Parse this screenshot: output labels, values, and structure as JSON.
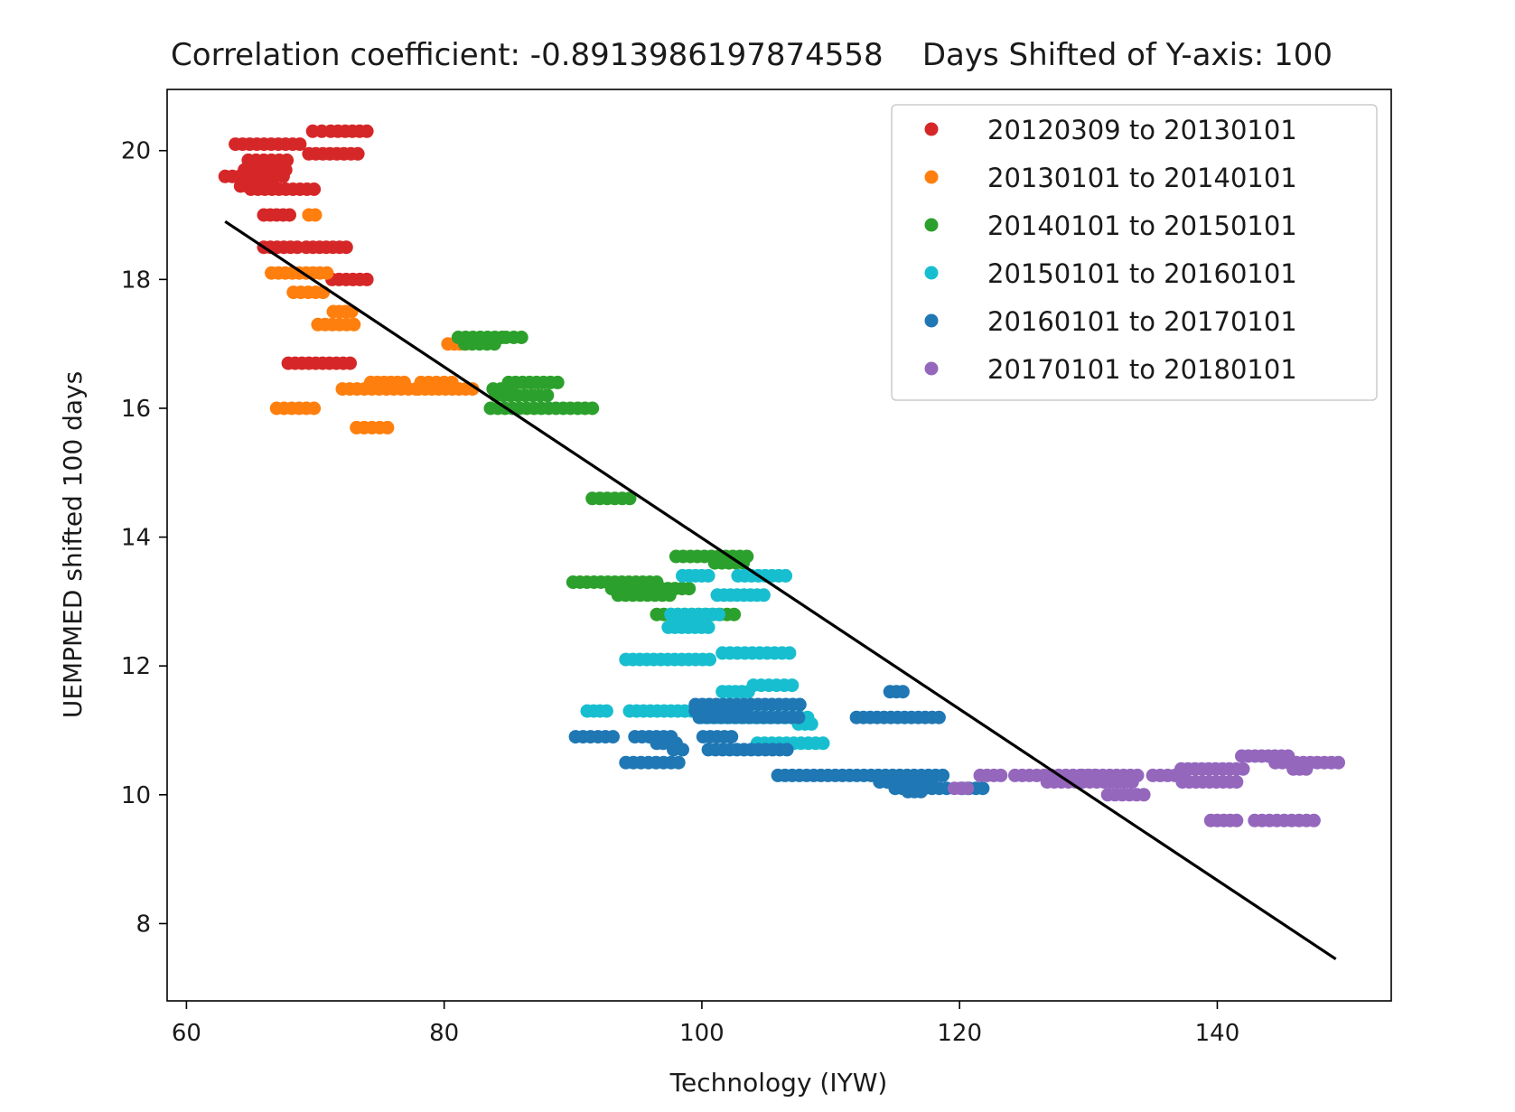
{
  "chart_data": {
    "type": "scatter",
    "title": "Correlation coefficient: -0.8913986197874558    Days Shifted of Y-axis: 100",
    "xlabel": "Technology (IYW)",
    "ylabel": "UEMPMED shifted 100 days",
    "xlim": [
      58.5,
      153.5
    ],
    "ylim": [
      6.8,
      20.95
    ],
    "xticks": [
      60,
      80,
      100,
      120,
      140
    ],
    "yticks": [
      8,
      10,
      12,
      14,
      16,
      18,
      20
    ],
    "grid": false,
    "legend_position": "top-right",
    "series": [
      {
        "name": "20120309 to 20130101",
        "color": "#d62728",
        "segments": [
          {
            "x1": 63.8,
            "x2": 68.8,
            "y": 20.1
          },
          {
            "x1": 69.8,
            "x2": 70.5,
            "y": 20.3
          },
          {
            "x1": 71.2,
            "x2": 74.0,
            "y": 20.3
          },
          {
            "x1": 64.8,
            "x2": 67.8,
            "y": 19.85
          },
          {
            "x1": 69.5,
            "x2": 73.3,
            "y": 19.95
          },
          {
            "x1": 64.5,
            "x2": 67.7,
            "y": 19.7
          },
          {
            "x1": 63.0,
            "x2": 67.5,
            "y": 19.6
          },
          {
            "x1": 64.2,
            "x2": 66.7,
            "y": 19.45
          },
          {
            "x1": 65.0,
            "x2": 69.9,
            "y": 19.4
          },
          {
            "x1": 66.0,
            "x2": 68.0,
            "y": 19.0
          },
          {
            "x1": 66.0,
            "x2": 68.6,
            "y": 18.5
          },
          {
            "x1": 69.3,
            "x2": 72.4,
            "y": 18.5
          },
          {
            "x1": 71.3,
            "x2": 74.0,
            "y": 18.0
          },
          {
            "x1": 67.9,
            "x2": 72.7,
            "y": 16.7
          }
        ]
      },
      {
        "name": "20130101 to 20140101",
        "color": "#ff7f0e",
        "segments": [
          {
            "x1": 69.5,
            "x2": 70.0,
            "y": 19.0
          },
          {
            "x1": 66.6,
            "x2": 70.9,
            "y": 18.1
          },
          {
            "x1": 68.3,
            "x2": 70.6,
            "y": 17.8
          },
          {
            "x1": 71.4,
            "x2": 72.8,
            "y": 17.5
          },
          {
            "x1": 70.2,
            "x2": 73.0,
            "y": 17.3
          },
          {
            "x1": 72.1,
            "x2": 77.8,
            "y": 16.3
          },
          {
            "x1": 74.3,
            "x2": 76.9,
            "y": 16.4
          },
          {
            "x1": 78.2,
            "x2": 80.6,
            "y": 16.4
          },
          {
            "x1": 78.0,
            "x2": 82.2,
            "y": 16.3
          },
          {
            "x1": 67.0,
            "x2": 69.9,
            "y": 16.0
          },
          {
            "x1": 73.2,
            "x2": 75.6,
            "y": 15.7
          },
          {
            "x1": 80.3,
            "x2": 81.7,
            "y": 17.0
          }
        ]
      },
      {
        "name": "20140101 to 20150101",
        "color": "#2ca02c",
        "segments": [
          {
            "x1": 81.1,
            "x2": 84.5,
            "y": 17.1
          },
          {
            "x1": 84.8,
            "x2": 86.0,
            "y": 17.1
          },
          {
            "x1": 81.6,
            "x2": 83.9,
            "y": 17.0
          },
          {
            "x1": 85.0,
            "x2": 88.8,
            "y": 16.4
          },
          {
            "x1": 84.0,
            "x2": 88.0,
            "y": 16.2
          },
          {
            "x1": 83.8,
            "x2": 85.0,
            "y": 16.3
          },
          {
            "x1": 83.6,
            "x2": 91.5,
            "y": 16.0
          },
          {
            "x1": 91.5,
            "x2": 94.4,
            "y": 14.6
          },
          {
            "x1": 98.0,
            "x2": 103.5,
            "y": 13.7
          },
          {
            "x1": 101.0,
            "x2": 103.2,
            "y": 13.6
          },
          {
            "x1": 90.0,
            "x2": 96.5,
            "y": 13.3
          },
          {
            "x1": 93.0,
            "x2": 99.0,
            "y": 13.2
          },
          {
            "x1": 93.5,
            "x2": 97.5,
            "y": 13.1
          },
          {
            "x1": 96.5,
            "x2": 102.5,
            "y": 12.8
          }
        ]
      },
      {
        "name": "20150101 to 20160101",
        "color": "#17becf",
        "segments": [
          {
            "x1": 98.5,
            "x2": 100.5,
            "y": 13.4
          },
          {
            "x1": 102.8,
            "x2": 106.5,
            "y": 13.4
          },
          {
            "x1": 101.2,
            "x2": 104.8,
            "y": 13.1
          },
          {
            "x1": 97.6,
            "x2": 101.3,
            "y": 12.8
          },
          {
            "x1": 97.4,
            "x2": 100.5,
            "y": 12.6
          },
          {
            "x1": 94.1,
            "x2": 100.6,
            "y": 12.1
          },
          {
            "x1": 101.6,
            "x2": 106.8,
            "y": 12.2
          },
          {
            "x1": 104.0,
            "x2": 107.0,
            "y": 11.7
          },
          {
            "x1": 101.6,
            "x2": 103.6,
            "y": 11.6
          },
          {
            "x1": 91.1,
            "x2": 92.6,
            "y": 11.3
          },
          {
            "x1": 94.4,
            "x2": 100.8,
            "y": 11.3
          },
          {
            "x1": 100.0,
            "x2": 108.2,
            "y": 11.2
          },
          {
            "x1": 104.3,
            "x2": 109.4,
            "y": 10.8
          },
          {
            "x1": 107.5,
            "x2": 108.5,
            "y": 11.1
          }
        ]
      },
      {
        "name": "20160101 to 20170101",
        "color": "#1f77b4",
        "segments": [
          {
            "x1": 114.6,
            "x2": 115.6,
            "y": 11.6
          },
          {
            "x1": 112.0,
            "x2": 118.4,
            "y": 11.2
          },
          {
            "x1": 99.5,
            "x2": 107.6,
            "y": 11.4
          },
          {
            "x1": 99.5,
            "x2": 103.2,
            "y": 11.3
          },
          {
            "x1": 99.8,
            "x2": 107.5,
            "y": 11.2
          },
          {
            "x1": 90.2,
            "x2": 93.1,
            "y": 10.9
          },
          {
            "x1": 94.8,
            "x2": 97.6,
            "y": 10.9
          },
          {
            "x1": 100.1,
            "x2": 102.3,
            "y": 10.9
          },
          {
            "x1": 96.5,
            "x2": 98.0,
            "y": 10.8
          },
          {
            "x1": 100.5,
            "x2": 106.6,
            "y": 10.7
          },
          {
            "x1": 97.8,
            "x2": 98.5,
            "y": 10.7
          },
          {
            "x1": 94.1,
            "x2": 98.2,
            "y": 10.5
          },
          {
            "x1": 105.9,
            "x2": 118.7,
            "y": 10.3
          },
          {
            "x1": 113.8,
            "x2": 117.8,
            "y": 10.2
          },
          {
            "x1": 115.0,
            "x2": 119.0,
            "y": 10.1
          },
          {
            "x1": 116.0,
            "x2": 117.0,
            "y": 10.05
          },
          {
            "x1": 120.2,
            "x2": 121.8,
            "y": 10.1
          }
        ]
      },
      {
        "name": "20170101 to 20180101",
        "color": "#9467bd",
        "segments": [
          {
            "x1": 119.6,
            "x2": 120.6,
            "y": 10.1
          },
          {
            "x1": 121.6,
            "x2": 123.2,
            "y": 10.3
          },
          {
            "x1": 124.3,
            "x2": 130.5,
            "y": 10.3
          },
          {
            "x1": 126.8,
            "x2": 133.4,
            "y": 10.2
          },
          {
            "x1": 129.5,
            "x2": 133.8,
            "y": 10.3
          },
          {
            "x1": 131.5,
            "x2": 134.3,
            "y": 10.0
          },
          {
            "x1": 135.0,
            "x2": 137.3,
            "y": 10.3
          },
          {
            "x1": 137.2,
            "x2": 142.0,
            "y": 10.4
          },
          {
            "x1": 137.3,
            "x2": 141.5,
            "y": 10.2
          },
          {
            "x1": 141.9,
            "x2": 145.5,
            "y": 10.6
          },
          {
            "x1": 144.5,
            "x2": 149.4,
            "y": 10.5
          },
          {
            "x1": 145.9,
            "x2": 146.9,
            "y": 10.4
          },
          {
            "x1": 139.5,
            "x2": 141.5,
            "y": 9.6
          },
          {
            "x1": 142.9,
            "x2": 147.5,
            "y": 9.6
          }
        ]
      }
    ],
    "regression_line": {
      "color": "#000000",
      "x": [
        63.0,
        149.2
      ],
      "y": [
        18.9,
        7.45
      ]
    }
  }
}
